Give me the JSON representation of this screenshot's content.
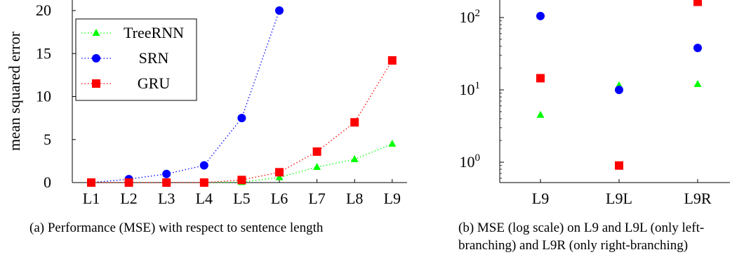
{
  "chart_data": [
    {
      "type": "line",
      "ylabel": "mean squared error",
      "categories": [
        "L1",
        "L2",
        "L3",
        "L4",
        "L5",
        "L6",
        "L7",
        "L8",
        "L9"
      ],
      "ylim": [
        0,
        20
      ],
      "yticks": [
        0,
        5,
        10,
        15,
        20
      ],
      "series": [
        {
          "name": "TreeRNN",
          "color": "#00ff00",
          "marker": "triangle",
          "values": [
            0.0,
            0.0,
            0.0,
            0.0,
            0.05,
            0.6,
            1.8,
            2.7,
            4.5
          ]
        },
        {
          "name": "SRN",
          "color": "#0000ff",
          "marker": "circle",
          "values": [
            0.0,
            0.4,
            1.0,
            2.0,
            7.5,
            20.0,
            null,
            null,
            null
          ]
        },
        {
          "name": "GRU",
          "color": "#ff0000",
          "marker": "square",
          "values": [
            0.0,
            0.0,
            0.0,
            0.0,
            0.3,
            1.2,
            3.6,
            7.0,
            14.2
          ]
        }
      ],
      "legend": "top-left",
      "caption": "(a) Performance (MSE) with respect to sentence length"
    },
    {
      "type": "scatter",
      "yscale": "log",
      "categories": [
        "L9",
        "L9L",
        "L9R"
      ],
      "yticks": [
        "10^0",
        "10^1",
        "10^2"
      ],
      "series": [
        {
          "name": "TreeRNN",
          "color": "#00ff00",
          "marker": "triangle",
          "values": [
            4.5,
            11.5,
            12.0
          ]
        },
        {
          "name": "SRN",
          "color": "#0000ff",
          "marker": "circle",
          "values": [
            105,
            10,
            38
          ]
        },
        {
          "name": "GRU",
          "color": "#ff0000",
          "marker": "square",
          "values": [
            14.5,
            0.9,
            165
          ]
        }
      ],
      "caption": "(b) MSE (log scale) on L9 and L9L (only left-branching) and L9R (only right-branching)",
      "caption_lines": [
        "(b) MSE (log scale) on L9 and L9L (only left-",
        "branching) and L9R (only right-branching)"
      ]
    }
  ]
}
